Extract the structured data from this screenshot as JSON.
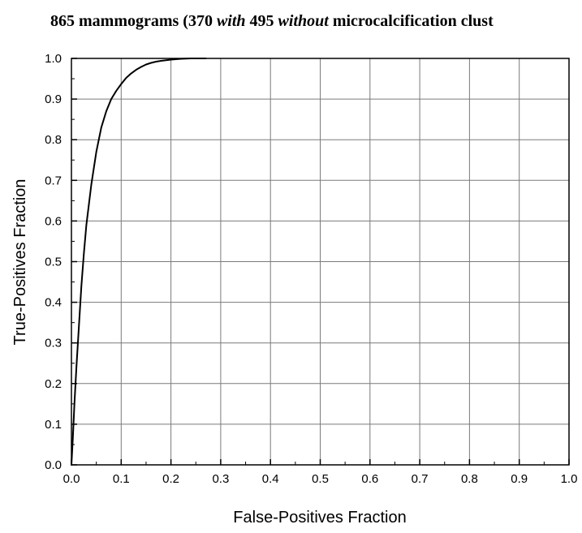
{
  "chart_data": {
    "type": "line",
    "title": {
      "part1": "865 mammograms (370 ",
      "part2": "with",
      "part3": " 495 ",
      "part4": "without",
      "part5": " microcalcification clust"
    },
    "xlabel": "False-Positives Fraction",
    "ylabel": "True-Positives Fraction",
    "xlim": [
      0.0,
      1.0
    ],
    "ylim": [
      0.0,
      1.0
    ],
    "x_ticks": [
      "0.0",
      "0.1",
      "0.2",
      "0.3",
      "0.4",
      "0.5",
      "0.6",
      "0.7",
      "0.8",
      "0.9",
      "1.0"
    ],
    "y_ticks": [
      "0.0",
      "0.1",
      "0.2",
      "0.3",
      "0.4",
      "0.5",
      "0.6",
      "0.7",
      "0.8",
      "0.9",
      "1.0"
    ],
    "grid": true,
    "legend": "none",
    "series": [
      {
        "color": "#000000",
        "x": [
          0.0,
          0.003,
          0.006,
          0.01,
          0.015,
          0.02,
          0.025,
          0.03,
          0.04,
          0.05,
          0.06,
          0.07,
          0.08,
          0.09,
          0.1,
          0.11,
          0.12,
          0.13,
          0.14,
          0.15,
          0.16,
          0.17,
          0.18,
          0.2,
          0.22,
          0.24,
          0.27
        ],
        "y": [
          0.0,
          0.07,
          0.15,
          0.24,
          0.34,
          0.44,
          0.52,
          0.59,
          0.69,
          0.77,
          0.83,
          0.87,
          0.9,
          0.92,
          0.937,
          0.952,
          0.963,
          0.972,
          0.979,
          0.985,
          0.989,
          0.992,
          0.994,
          0.997,
          0.999,
          1.0,
          1.0
        ]
      }
    ]
  }
}
